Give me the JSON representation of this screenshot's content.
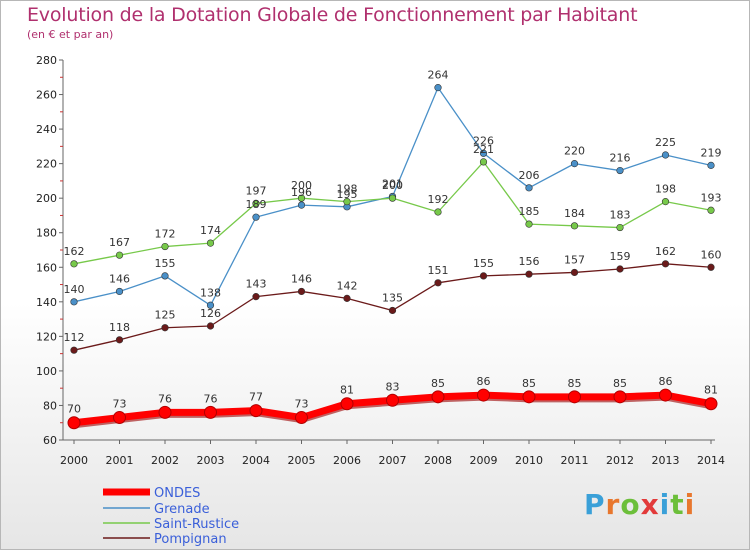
{
  "header": {
    "title": "Evolution de la Dotation Globale de Fonctionnement par Habitant",
    "subtitle": "(en € et par an)"
  },
  "logo": {
    "text": "Proxiti",
    "colors": [
      "#3aa0d8",
      "#e8772e",
      "#6cbf3a",
      "#e23a3a",
      "#3aa0d8",
      "#6cbf3a",
      "#e8772e"
    ]
  },
  "chart_data": {
    "type": "line",
    "title": "Evolution de la Dotation Globale de Fonctionnement par Habitant",
    "subtitle": "(en € et par an)",
    "x": [
      2000,
      2001,
      2002,
      2003,
      2004,
      2005,
      2006,
      2007,
      2008,
      2009,
      2010,
      2011,
      2012,
      2013,
      2014
    ],
    "ylim": [
      60,
      280
    ],
    "yticks": [
      60,
      80,
      100,
      120,
      140,
      160,
      180,
      200,
      220,
      240,
      260,
      280
    ],
    "grid": false,
    "legend": "bottom-left",
    "series": [
      {
        "name": "ONDES",
        "color": "#ff0000",
        "values": [
          70,
          73,
          76,
          76,
          77,
          73,
          81,
          83,
          85,
          86,
          85,
          85,
          85,
          86,
          81
        ]
      },
      {
        "name": "Grenade",
        "color": "#4a90c8",
        "values": [
          140,
          146,
          155,
          138,
          189,
          196,
          195,
          201,
          264,
          226,
          206,
          220,
          216,
          225,
          219
        ]
      },
      {
        "name": "Saint-Rustice",
        "color": "#77c94a",
        "values": [
          162,
          167,
          172,
          174,
          197,
          200,
          198,
          200,
          192,
          221,
          185,
          184,
          183,
          198,
          193
        ]
      },
      {
        "name": "Pompignan",
        "color": "#6b1a1a",
        "values": [
          112,
          118,
          125,
          126,
          143,
          146,
          142,
          135,
          151,
          155,
          156,
          157,
          159,
          162,
          160
        ]
      }
    ]
  }
}
